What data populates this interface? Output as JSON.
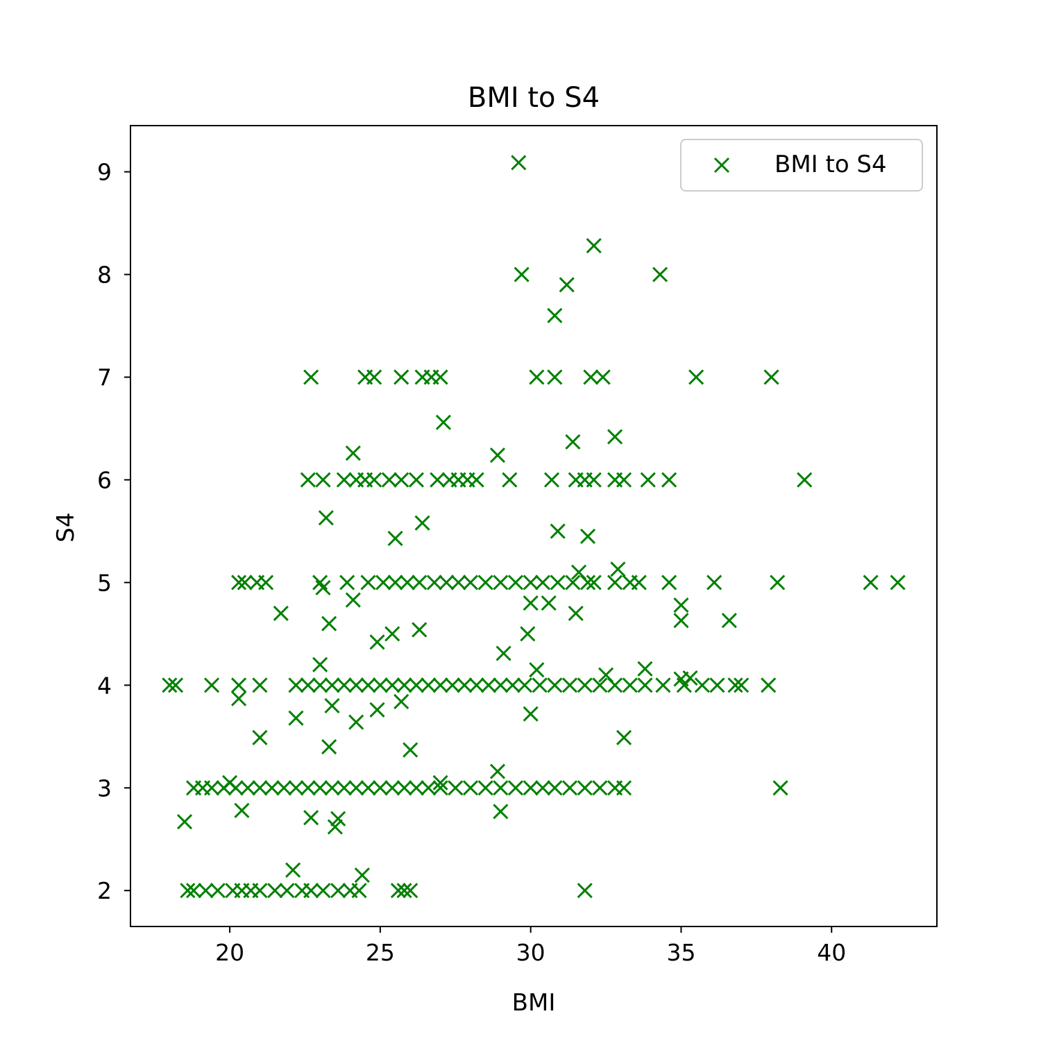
{
  "chart_data": {
    "type": "scatter",
    "title": "BMI to S4",
    "xlabel": "BMI",
    "ylabel": "S4",
    "xlim": [
      16.7,
      43.5
    ],
    "ylim": [
      1.65,
      9.45
    ],
    "xticks": [
      20,
      25,
      30,
      35,
      40
    ],
    "yticks": [
      2,
      3,
      4,
      5,
      6,
      7,
      8,
      9
    ],
    "grid": false,
    "legend_position": "top-right",
    "marker": "x",
    "series": [
      {
        "name": "BMI to S4",
        "color": "#008000",
        "points": [
          [
            29.6,
            9.09
          ],
          [
            32.1,
            8.28
          ],
          [
            29.7,
            8.0
          ],
          [
            34.3,
            8.0
          ],
          [
            31.2,
            7.9
          ],
          [
            30.8,
            7.6
          ],
          [
            22.7,
            7.0
          ],
          [
            24.5,
            7.0
          ],
          [
            24.8,
            7.0
          ],
          [
            25.7,
            7.0
          ],
          [
            26.4,
            7.0
          ],
          [
            26.7,
            7.0
          ],
          [
            27.0,
            7.0
          ],
          [
            30.2,
            7.0
          ],
          [
            30.8,
            7.0
          ],
          [
            32.0,
            7.0
          ],
          [
            32.4,
            7.0
          ],
          [
            35.5,
            7.0
          ],
          [
            38.0,
            7.0
          ],
          [
            27.1,
            6.56
          ],
          [
            32.8,
            6.42
          ],
          [
            31.4,
            6.37
          ],
          [
            24.1,
            6.26
          ],
          [
            28.9,
            6.24
          ],
          [
            22.6,
            6.0
          ],
          [
            23.1,
            6.0
          ],
          [
            23.8,
            6.0
          ],
          [
            24.2,
            6.0
          ],
          [
            24.5,
            6.0
          ],
          [
            24.8,
            6.0
          ],
          [
            25.3,
            6.0
          ],
          [
            25.7,
            6.0
          ],
          [
            26.2,
            6.0
          ],
          [
            26.9,
            6.0
          ],
          [
            27.3,
            6.0
          ],
          [
            27.6,
            6.0
          ],
          [
            27.9,
            6.0
          ],
          [
            28.2,
            6.0
          ],
          [
            29.3,
            6.0
          ],
          [
            30.7,
            6.0
          ],
          [
            31.5,
            6.0
          ],
          [
            31.8,
            6.0
          ],
          [
            32.1,
            6.0
          ],
          [
            32.8,
            6.0
          ],
          [
            33.1,
            6.0
          ],
          [
            33.9,
            6.0
          ],
          [
            34.6,
            6.0
          ],
          [
            39.1,
            6.0
          ],
          [
            23.2,
            5.63
          ],
          [
            26.4,
            5.58
          ],
          [
            30.9,
            5.5
          ],
          [
            25.5,
            5.43
          ],
          [
            31.9,
            5.45
          ],
          [
            32.9,
            5.13
          ],
          [
            31.6,
            5.1
          ],
          [
            20.3,
            5.0
          ],
          [
            20.5,
            5.0
          ],
          [
            20.9,
            5.0
          ],
          [
            21.2,
            5.0
          ],
          [
            23.0,
            5.0
          ],
          [
            23.9,
            5.0
          ],
          [
            24.6,
            5.0
          ],
          [
            25.1,
            5.0
          ],
          [
            25.5,
            5.0
          ],
          [
            25.9,
            5.0
          ],
          [
            26.3,
            5.0
          ],
          [
            26.8,
            5.0
          ],
          [
            27.2,
            5.0
          ],
          [
            27.6,
            5.0
          ],
          [
            28.0,
            5.0
          ],
          [
            28.5,
            5.0
          ],
          [
            29.0,
            5.0
          ],
          [
            29.5,
            5.0
          ],
          [
            30.0,
            5.0
          ],
          [
            30.4,
            5.0
          ],
          [
            30.9,
            5.0
          ],
          [
            31.4,
            5.0
          ],
          [
            31.9,
            5.0
          ],
          [
            32.1,
            5.0
          ],
          [
            32.8,
            5.0
          ],
          [
            33.3,
            5.0
          ],
          [
            33.6,
            5.0
          ],
          [
            34.6,
            5.0
          ],
          [
            36.1,
            5.0
          ],
          [
            38.2,
            5.0
          ],
          [
            41.3,
            5.0
          ],
          [
            42.2,
            5.0
          ],
          [
            23.1,
            4.95
          ],
          [
            24.1,
            4.83
          ],
          [
            30.0,
            4.8
          ],
          [
            30.6,
            4.8
          ],
          [
            35.0,
            4.78
          ],
          [
            21.7,
            4.7
          ],
          [
            31.5,
            4.7
          ],
          [
            35.0,
            4.63
          ],
          [
            36.6,
            4.63
          ],
          [
            23.3,
            4.6
          ],
          [
            26.3,
            4.54
          ],
          [
            25.4,
            4.5
          ],
          [
            29.9,
            4.5
          ],
          [
            24.9,
            4.42
          ],
          [
            29.1,
            4.31
          ],
          [
            23.0,
            4.2
          ],
          [
            33.8,
            4.16
          ],
          [
            30.2,
            4.15
          ],
          [
            32.5,
            4.1
          ],
          [
            35.3,
            4.07
          ],
          [
            35.0,
            4.06
          ],
          [
            18.0,
            4.0
          ],
          [
            18.2,
            4.0
          ],
          [
            19.4,
            4.0
          ],
          [
            20.3,
            4.0
          ],
          [
            21.0,
            4.0
          ],
          [
            22.2,
            4.0
          ],
          [
            22.6,
            4.0
          ],
          [
            23.0,
            4.0
          ],
          [
            23.4,
            4.0
          ],
          [
            23.8,
            4.0
          ],
          [
            24.2,
            4.0
          ],
          [
            24.6,
            4.0
          ],
          [
            25.0,
            4.0
          ],
          [
            25.4,
            4.0
          ],
          [
            25.8,
            4.0
          ],
          [
            26.2,
            4.0
          ],
          [
            26.6,
            4.0
          ],
          [
            27.0,
            4.0
          ],
          [
            27.4,
            4.0
          ],
          [
            27.8,
            4.0
          ],
          [
            28.2,
            4.0
          ],
          [
            28.6,
            4.0
          ],
          [
            29.0,
            4.0
          ],
          [
            29.4,
            4.0
          ],
          [
            29.8,
            4.0
          ],
          [
            30.3,
            4.0
          ],
          [
            30.8,
            4.0
          ],
          [
            31.3,
            4.0
          ],
          [
            31.8,
            4.0
          ],
          [
            32.3,
            4.0
          ],
          [
            32.8,
            4.0
          ],
          [
            33.3,
            4.0
          ],
          [
            33.8,
            4.0
          ],
          [
            34.4,
            4.0
          ],
          [
            35.1,
            4.0
          ],
          [
            35.7,
            4.0
          ],
          [
            36.2,
            4.0
          ],
          [
            36.8,
            4.0
          ],
          [
            37.0,
            4.0
          ],
          [
            37.9,
            4.0
          ],
          [
            20.3,
            3.87
          ],
          [
            25.7,
            3.84
          ],
          [
            23.4,
            3.8
          ],
          [
            24.9,
            3.76
          ],
          [
            30.0,
            3.72
          ],
          [
            22.2,
            3.68
          ],
          [
            24.2,
            3.64
          ],
          [
            21.0,
            3.49
          ],
          [
            33.1,
            3.49
          ],
          [
            23.3,
            3.4
          ],
          [
            26.0,
            3.37
          ],
          [
            28.9,
            3.16
          ],
          [
            20.0,
            3.05
          ],
          [
            27.0,
            3.05
          ],
          [
            18.8,
            3.0
          ],
          [
            19.1,
            3.0
          ],
          [
            19.4,
            3.0
          ],
          [
            19.8,
            3.0
          ],
          [
            20.2,
            3.0
          ],
          [
            20.6,
            3.0
          ],
          [
            21.0,
            3.0
          ],
          [
            21.4,
            3.0
          ],
          [
            21.8,
            3.0
          ],
          [
            22.2,
            3.0
          ],
          [
            22.6,
            3.0
          ],
          [
            23.0,
            3.0
          ],
          [
            23.4,
            3.0
          ],
          [
            23.8,
            3.0
          ],
          [
            24.2,
            3.0
          ],
          [
            24.6,
            3.0
          ],
          [
            25.0,
            3.0
          ],
          [
            25.4,
            3.0
          ],
          [
            25.8,
            3.0
          ],
          [
            26.2,
            3.0
          ],
          [
            26.6,
            3.0
          ],
          [
            27.0,
            3.0
          ],
          [
            27.5,
            3.0
          ],
          [
            28.0,
            3.0
          ],
          [
            28.5,
            3.0
          ],
          [
            29.0,
            3.0
          ],
          [
            29.5,
            3.0
          ],
          [
            30.0,
            3.0
          ],
          [
            30.4,
            3.0
          ],
          [
            30.8,
            3.0
          ],
          [
            31.3,
            3.0
          ],
          [
            31.8,
            3.0
          ],
          [
            32.3,
            3.0
          ],
          [
            32.8,
            3.0
          ],
          [
            33.1,
            3.0
          ],
          [
            38.3,
            3.0
          ],
          [
            20.4,
            2.78
          ],
          [
            29.0,
            2.77
          ],
          [
            22.7,
            2.71
          ],
          [
            23.6,
            2.7
          ],
          [
            18.5,
            2.67
          ],
          [
            23.5,
            2.62
          ],
          [
            22.1,
            2.2
          ],
          [
            24.4,
            2.15
          ],
          [
            18.6,
            2.0
          ],
          [
            18.8,
            2.0
          ],
          [
            19.2,
            2.0
          ],
          [
            19.6,
            2.0
          ],
          [
            20.1,
            2.0
          ],
          [
            20.4,
            2.0
          ],
          [
            20.7,
            2.0
          ],
          [
            21.0,
            2.0
          ],
          [
            21.5,
            2.0
          ],
          [
            21.9,
            2.0
          ],
          [
            22.4,
            2.0
          ],
          [
            22.7,
            2.0
          ],
          [
            23.1,
            2.0
          ],
          [
            23.6,
            2.0
          ],
          [
            24.0,
            2.0
          ],
          [
            24.3,
            2.0
          ],
          [
            25.6,
            2.0
          ],
          [
            25.8,
            2.0
          ],
          [
            26.0,
            2.0
          ],
          [
            31.8,
            2.0
          ]
        ]
      }
    ]
  }
}
